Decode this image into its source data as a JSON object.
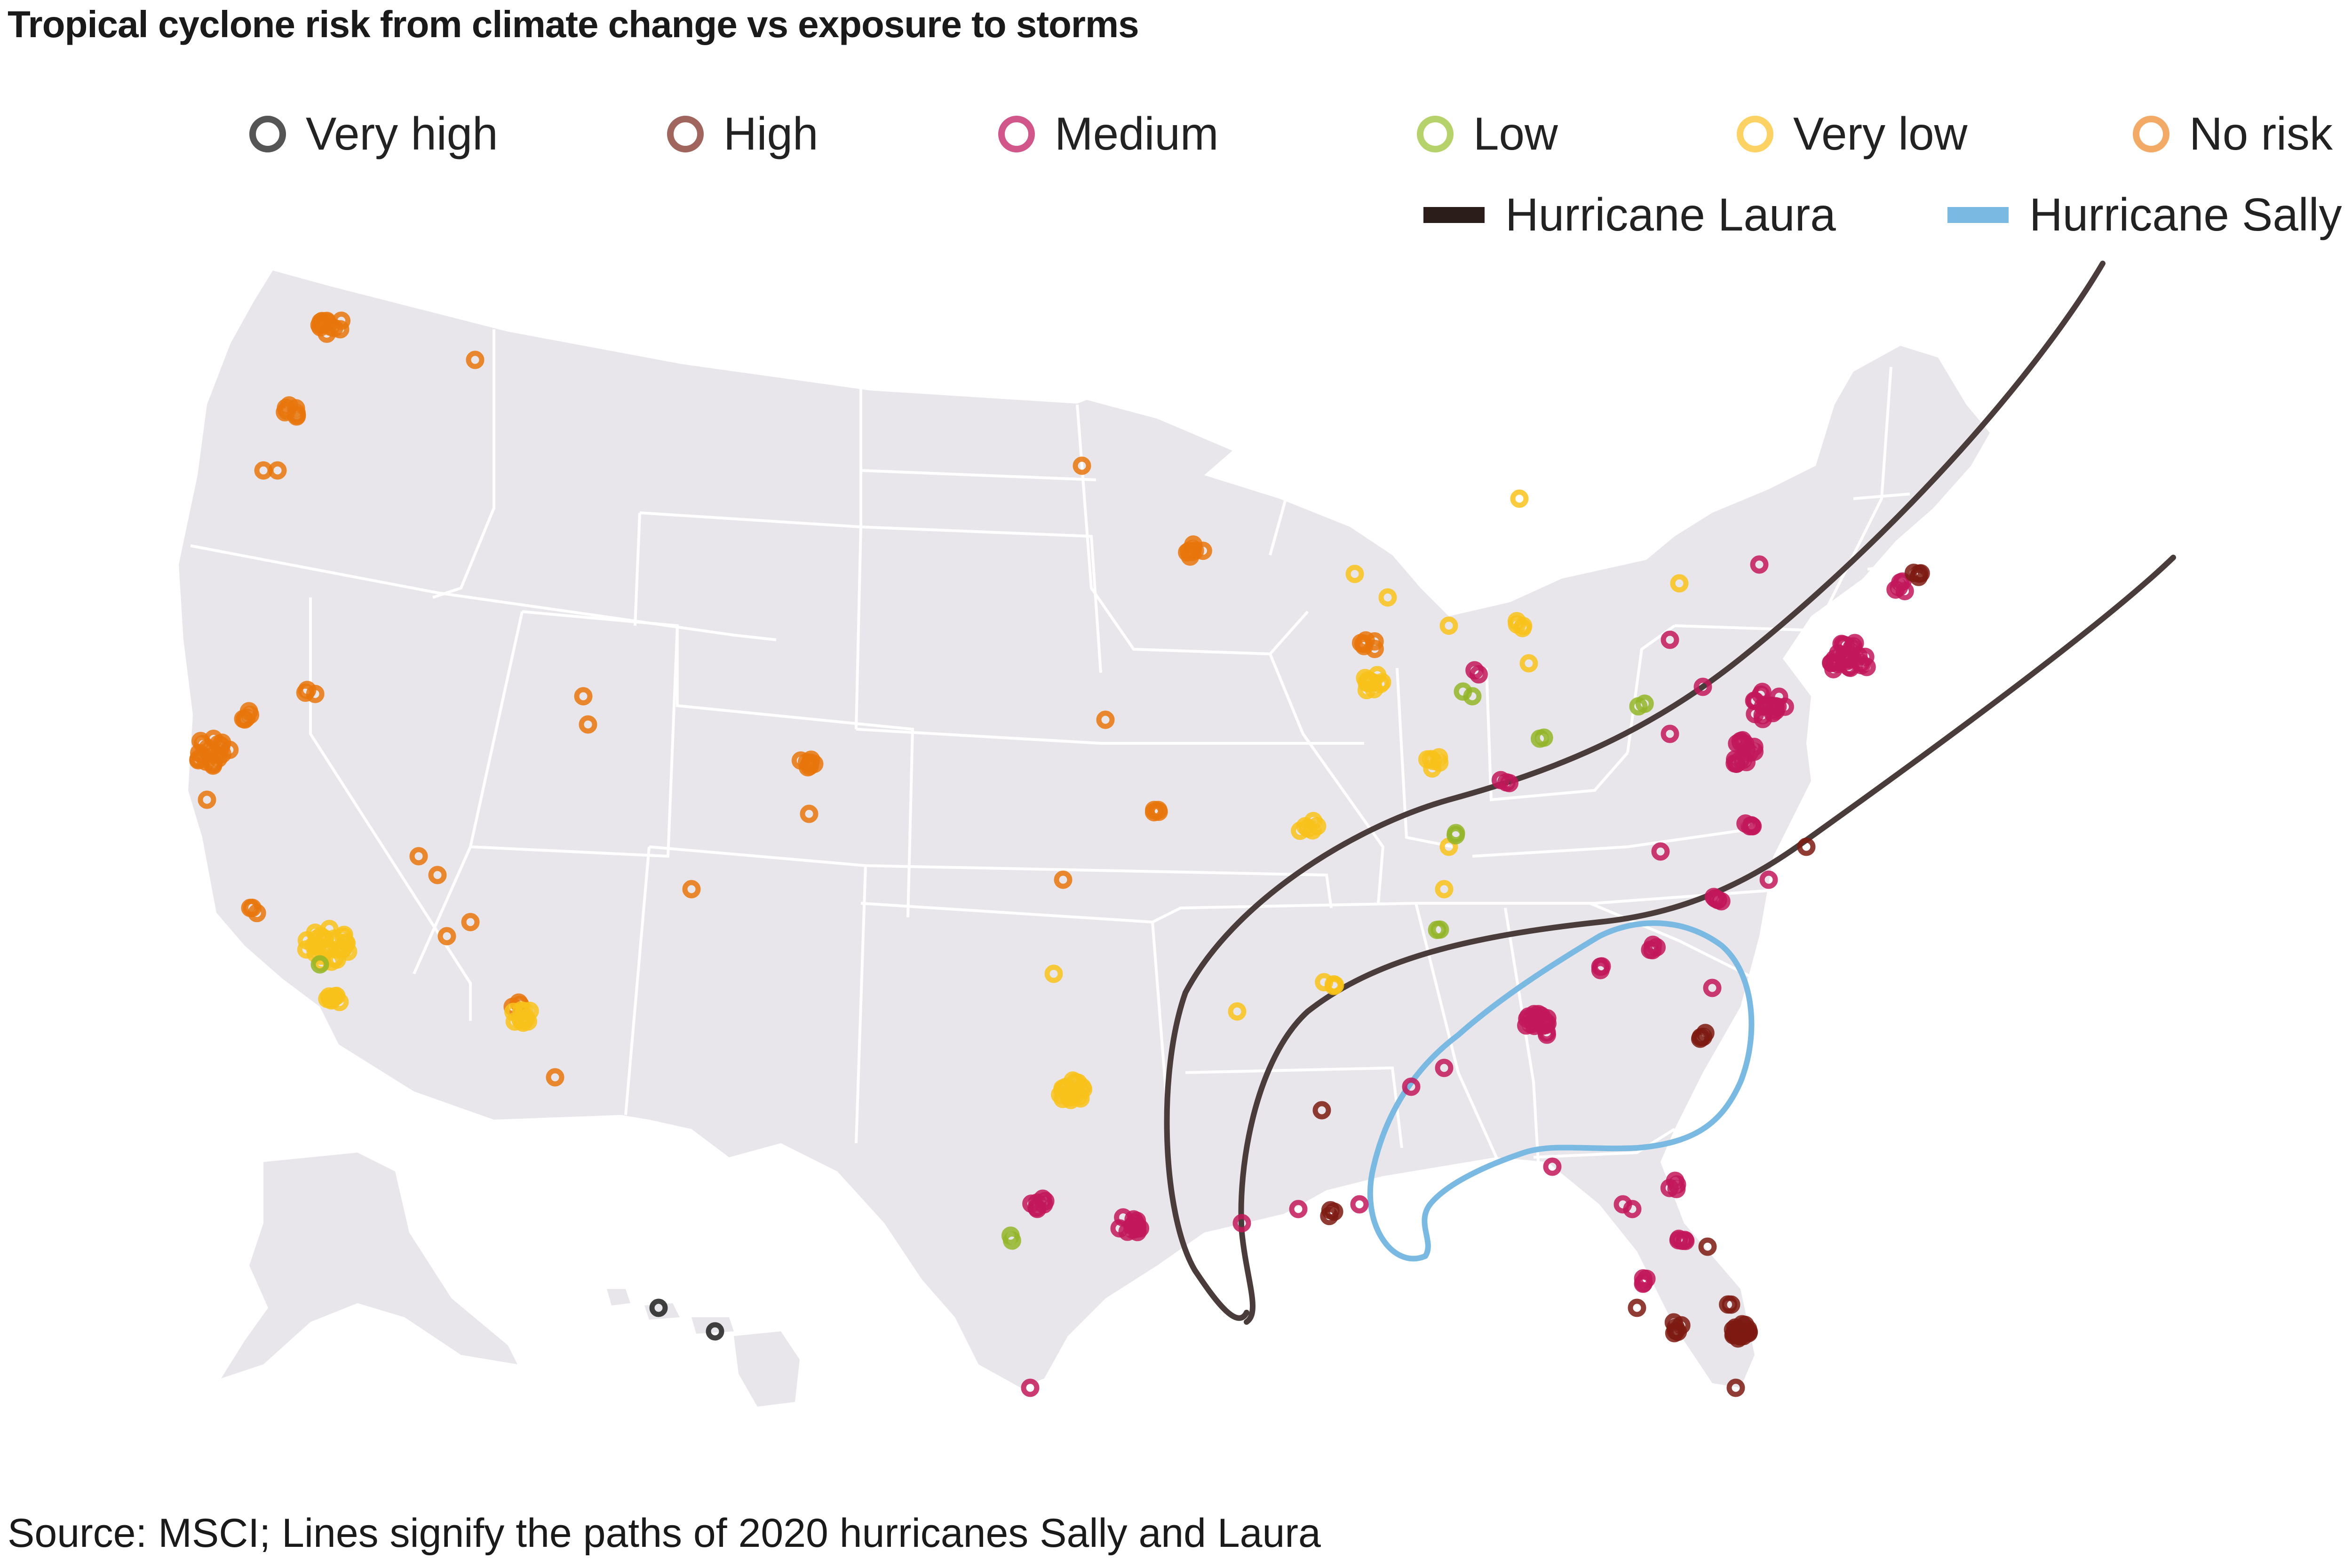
{
  "title": "Tropical cyclone risk from climate change vs exposure to storms",
  "source": "Source: MSCI; Lines signify the paths of 2020 hurricanes Sally and Laura",
  "legend": {
    "risk": [
      {
        "key": "very_high",
        "label": "Very high",
        "color": "#555555"
      },
      {
        "key": "high",
        "label": "High",
        "color": "#a0665e"
      },
      {
        "key": "medium",
        "label": "Medium",
        "color": "#d1568a"
      },
      {
        "key": "low",
        "label": "Low",
        "color": "#b6d26a"
      },
      {
        "key": "very_low",
        "label": "Very low",
        "color": "#fcd264"
      },
      {
        "key": "no_risk",
        "label": "No risk",
        "color": "#f3aa66"
      }
    ],
    "paths": [
      {
        "key": "laura",
        "label": "Hurricane Laura",
        "color": "#2a1d1a"
      },
      {
        "key": "sally",
        "label": "Hurricane Sally",
        "color": "#7ab9e2"
      }
    ]
  },
  "point_colors": {
    "very_high": "#1e1e1e",
    "high": "#7d1a12",
    "medium": "#c2185b",
    "low": "#93b528",
    "very_low": "#f8c21b",
    "no_risk": "#e8760c"
  },
  "colors": {
    "land": "#e9e6eb",
    "state_border": "#ffffff",
    "laura_path": "#4a3c3a",
    "sally_path": "#7ab9e2"
  }
}
